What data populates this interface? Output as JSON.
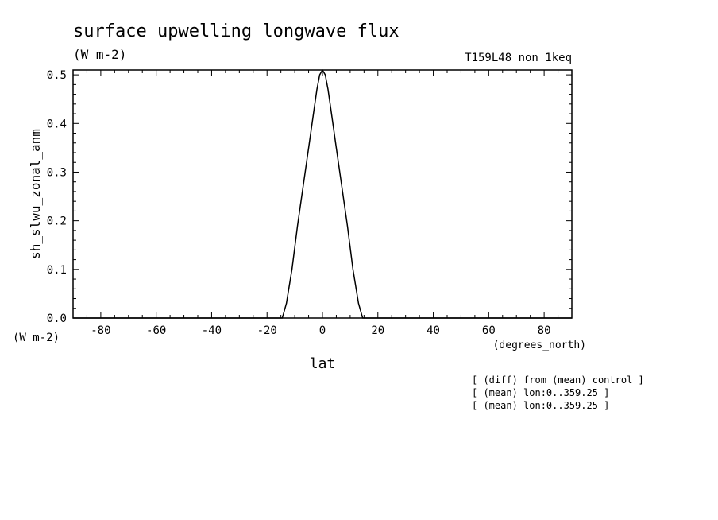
{
  "header": {
    "title": "surface upwelling longwave flux",
    "units": "(W m-2)",
    "run_id": "T159L48_non_1keq"
  },
  "axes": {
    "ylabel": "sh_slwu_zonal_anm",
    "y_units": "(W m-2)",
    "xlabel": "lat",
    "x_units": "(degrees_north)"
  },
  "notes": [
    "[ (diff) from (mean) control ]",
    "[ (mean) lon:0..359.25 ]",
    "[ (mean) lon:0..359.25 ]"
  ],
  "chart_data": {
    "type": "line",
    "title": "surface upwelling longwave flux",
    "xlabel": "lat",
    "ylabel": "sh_slwu_zonal_anm",
    "xlim": [
      -90,
      90
    ],
    "ylim": [
      0,
      0.51
    ],
    "x_ticks": [
      -80,
      -60,
      -40,
      -20,
      0,
      20,
      40,
      60,
      80
    ],
    "x_tick_labels": [
      "-80",
      "-60",
      "-40",
      "-20",
      "0",
      "20",
      "40",
      "60",
      "80"
    ],
    "y_ticks": [
      0.0,
      0.1,
      0.2,
      0.3,
      0.4,
      0.5
    ],
    "y_tick_labels": [
      "0.0",
      "0.1",
      "0.2",
      "0.3",
      "0.4",
      "0.5"
    ],
    "grid": false,
    "series": [
      {
        "x": [
          -90,
          -20,
          -14.5,
          -13,
          -11,
          -9,
          -7,
          -5,
          -3,
          -2,
          -1,
          0,
          1,
          2,
          3,
          5,
          7,
          9,
          11,
          13,
          14.5,
          20,
          90
        ],
        "y": [
          0,
          0,
          0,
          0.03,
          0.1,
          0.19,
          0.27,
          0.35,
          0.43,
          0.47,
          0.5,
          0.51,
          0.5,
          0.47,
          0.43,
          0.35,
          0.27,
          0.19,
          0.1,
          0.03,
          0,
          0,
          0
        ]
      }
    ]
  }
}
